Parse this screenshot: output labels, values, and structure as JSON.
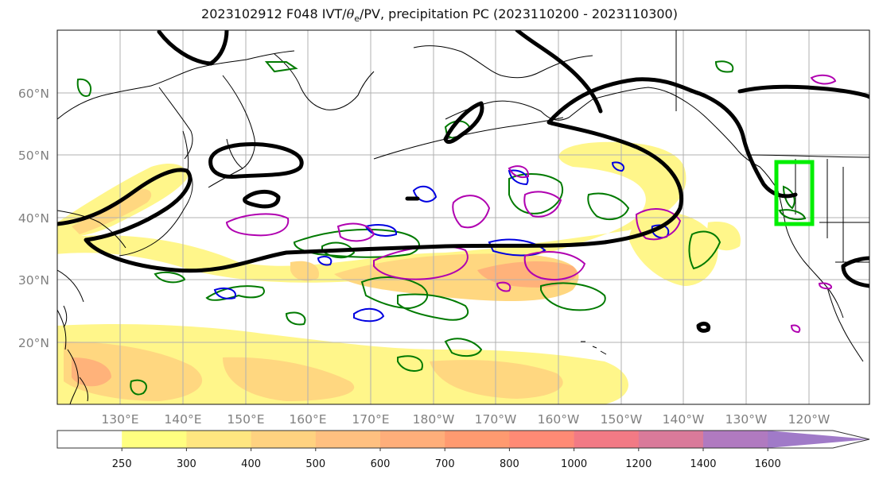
{
  "title": {
    "prefix": "2023102912 F048 IVT/",
    "theta": "θ",
    "theta_sub": "e",
    "suffix": "/PV, precipitation PC (2023110200 - 2023110300)"
  },
  "axes": {
    "lat_ticks": [
      "20°N",
      "30°N",
      "40°N",
      "50°N",
      "60°N"
    ],
    "lon_ticks": [
      "130°E",
      "140°E",
      "150°E",
      "160°E",
      "170°E",
      "180°W",
      "170°W",
      "160°W",
      "150°W",
      "140°W",
      "130°W",
      "120°W"
    ]
  },
  "colorbar": {
    "labels": [
      "250",
      "300",
      "400",
      "500",
      "600",
      "700",
      "800",
      "1000",
      "1200",
      "1400",
      "1600"
    ],
    "colors": [
      "#ffffff",
      "#ffff80",
      "#ffe680",
      "#ffd280",
      "#ffc080",
      "#ffae7a",
      "#ff9a70",
      "#ff8a75",
      "#f27a85",
      "#d97a9a",
      "#b07ac0",
      "#a07ac8"
    ]
  },
  "colors": {
    "ivt_low": "#fff68a",
    "ivt_mid": "#ffd780",
    "ivt_high": "#ffb27a",
    "pv_contour": "#000000",
    "theta_e_contour": "#007a00",
    "precip_pc_positive": "#b000b0",
    "precip_pc_negative": "#0000e0",
    "target_box": "#00ee00",
    "gridline": "#b0b0b0"
  }
}
